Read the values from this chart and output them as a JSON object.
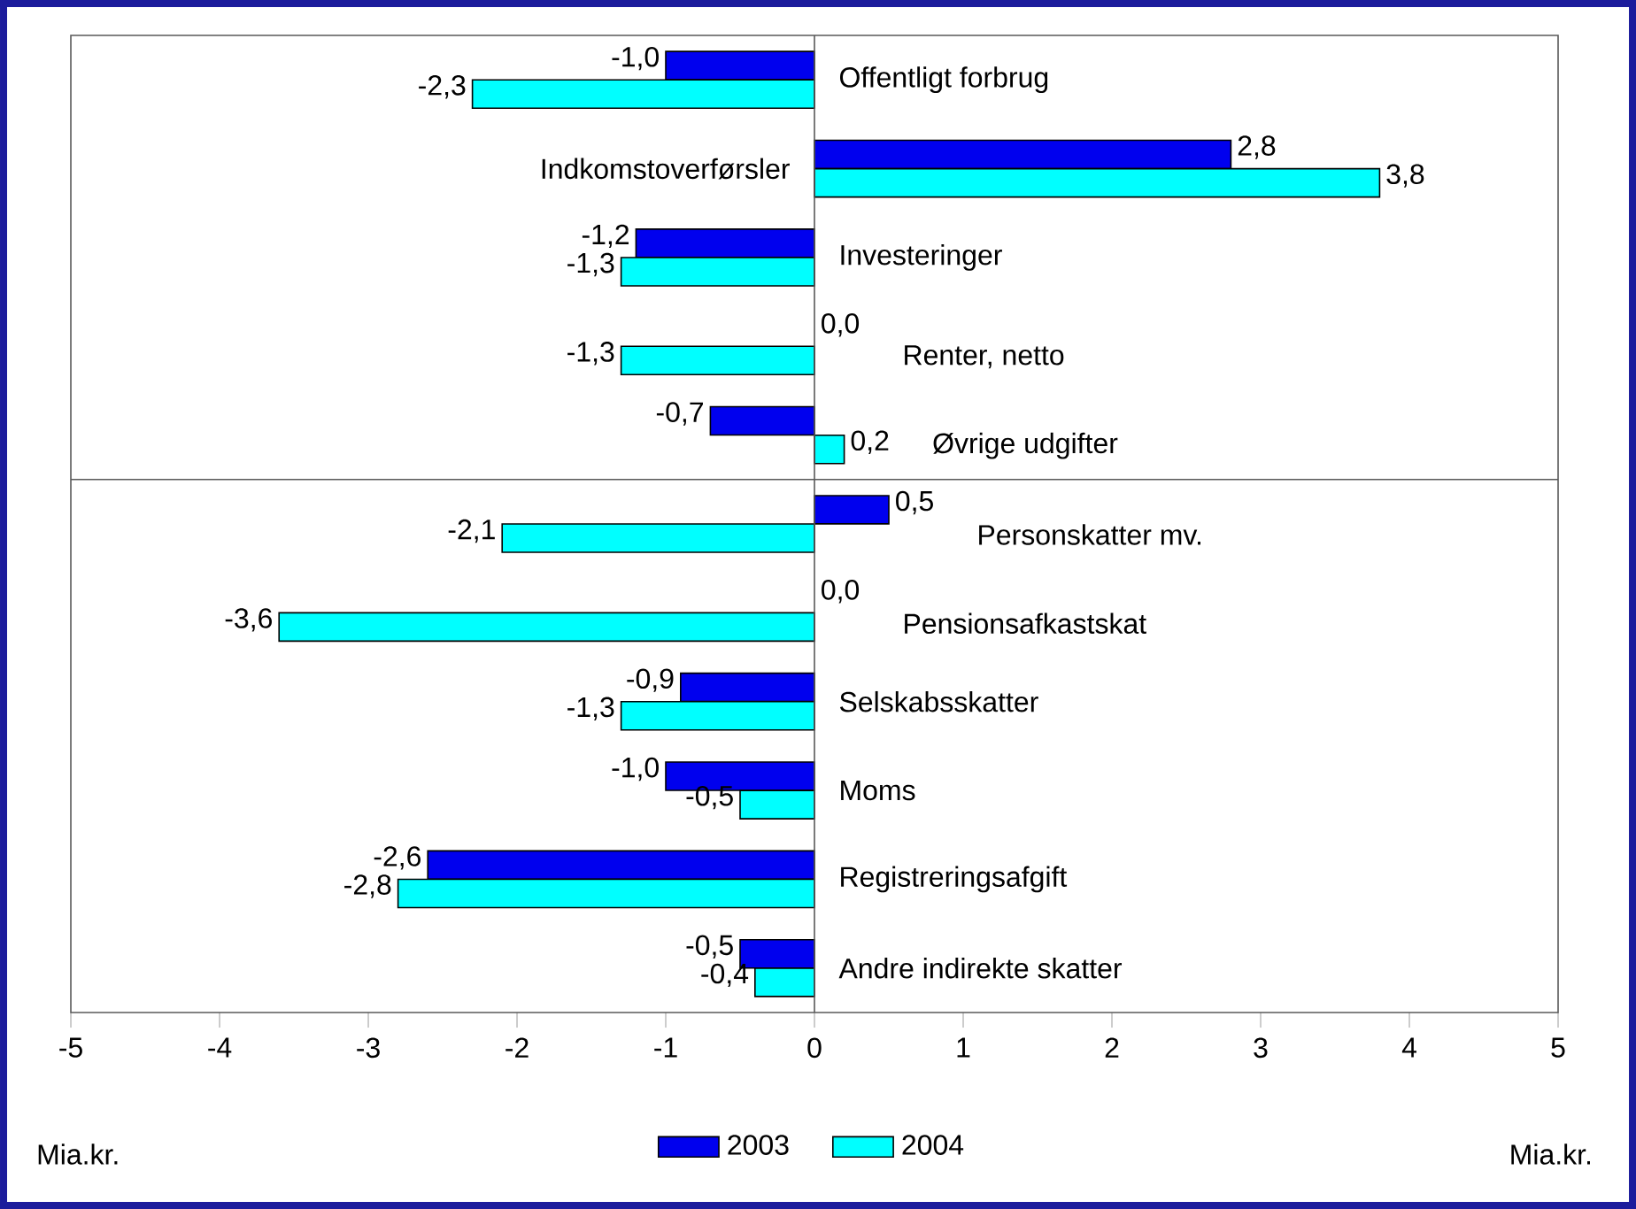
{
  "chart_data": {
    "type": "bar",
    "orientation": "horizontal",
    "xlabel": "Mia.kr.",
    "categories": [
      "Offentligt forbrug",
      "Indkomstoverførsler",
      "Investeringer",
      "Renter, netto",
      "Øvrige udgifter",
      "Personskatter mv.",
      "Pensionsafkastskat",
      "Selskabsskatter",
      "Moms",
      "Registreringsafgift",
      "Andre indirekte skatter"
    ],
    "series": [
      {
        "name": "2003",
        "color": "#0000ee",
        "values": [
          -1.0,
          2.8,
          -1.2,
          0.0,
          -0.7,
          0.5,
          0.0,
          -0.9,
          -1.0,
          -2.6,
          -0.5
        ],
        "value_labels": [
          "-1,0",
          "2,8",
          "-1,2",
          "0,0",
          "-0,7",
          "0,5",
          "0,0",
          "-0,9",
          "-1,0",
          "-2,6",
          "-0,5"
        ]
      },
      {
        "name": "2004",
        "color": "#00ffff",
        "values": [
          -2.3,
          3.8,
          -1.3,
          -1.3,
          0.2,
          -2.1,
          -3.6,
          -1.3,
          -0.5,
          -2.8,
          -0.4
        ],
        "value_labels": [
          "-2,3",
          "3,8",
          "-1,3",
          "-1,3",
          "0,2",
          "-2,1",
          "-3,6",
          "-1,3",
          "-0,5",
          "-2,8",
          "-0,4"
        ]
      }
    ],
    "xlim": [
      -5,
      5
    ],
    "xticks": [
      -5,
      -4,
      -3,
      -2,
      -1,
      0,
      1,
      2,
      3,
      4,
      5
    ],
    "annotations": [
      "Mia.kr."
    ],
    "legend": "bottom",
    "grid": false
  }
}
